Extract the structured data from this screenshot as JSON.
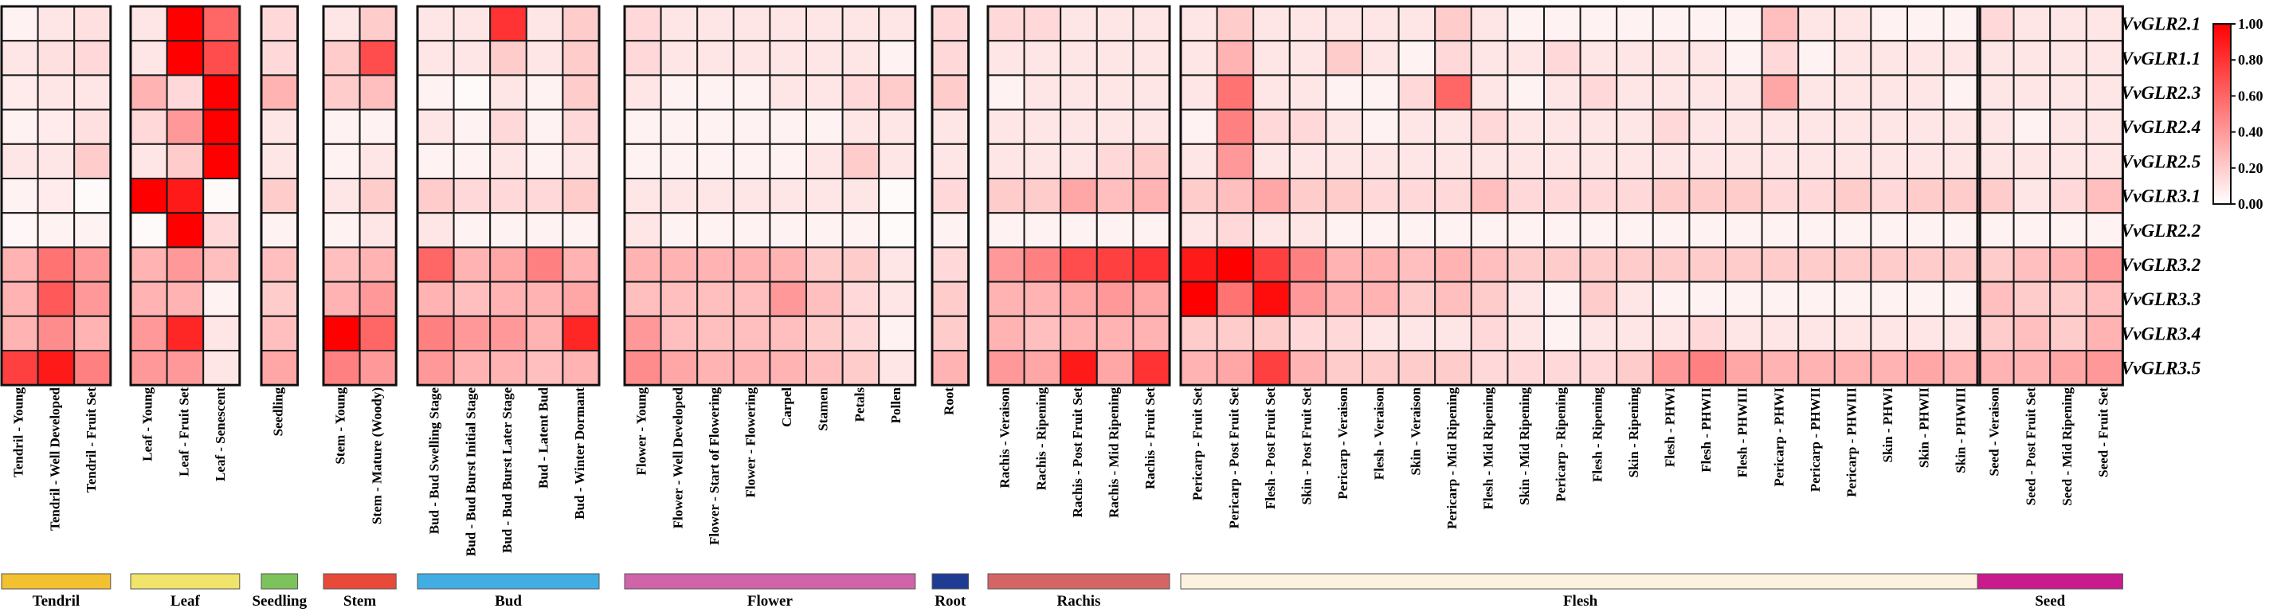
{
  "chart_data": {
    "type": "heatmap",
    "title": "",
    "xlabel": "",
    "ylabel": "",
    "colorscale": {
      "min": 0.0,
      "max": 1.0,
      "low_color": "#ffffff",
      "high_color": "#ff0000"
    },
    "legend": {
      "ticks": [
        "1.00",
        "0.80",
        "0.60",
        "0.40",
        "0.20",
        "0.00"
      ],
      "position": "right"
    },
    "rows": [
      "VvGLR2.1",
      "VvGLR1.1",
      "VvGLR2.3",
      "VvGLR2.4",
      "VvGLR2.5",
      "VvGLR3.1",
      "VvGLR2.2",
      "VvGLR3.2",
      "VvGLR3.3",
      "VvGLR3.4",
      "VvGLR3.5"
    ],
    "groups": [
      {
        "name": "Tendril",
        "color": "#f3c02f",
        "columns": [
          "Tendril - Young",
          "Tendril - Well Developed",
          "Tendril - Fruit Set"
        ],
        "values": [
          [
            0.05,
            0.1,
            0.12
          ],
          [
            0.1,
            0.12,
            0.15
          ],
          [
            0.08,
            0.1,
            0.1
          ],
          [
            0.05,
            0.08,
            0.12
          ],
          [
            0.1,
            0.1,
            0.2
          ],
          [
            0.05,
            0.08,
            0.02
          ],
          [
            0.03,
            0.05,
            0.05
          ],
          [
            0.3,
            0.55,
            0.4
          ],
          [
            0.3,
            0.65,
            0.4
          ],
          [
            0.3,
            0.45,
            0.3
          ],
          [
            0.75,
            0.9,
            0.5
          ]
        ]
      },
      {
        "name": "Leaf",
        "color": "#f0e46a",
        "columns": [
          "Leaf - Young",
          "Leaf - Fruit Set",
          "Leaf - Senescent"
        ],
        "values": [
          [
            0.1,
            1.0,
            0.6
          ],
          [
            0.1,
            1.0,
            0.7
          ],
          [
            0.3,
            0.15,
            1.0
          ],
          [
            0.15,
            0.4,
            1.0
          ],
          [
            0.1,
            0.2,
            1.0
          ],
          [
            1.0,
            0.9,
            0.02
          ],
          [
            0.02,
            1.0,
            0.15
          ],
          [
            0.3,
            0.4,
            0.25
          ],
          [
            0.3,
            0.3,
            0.05
          ],
          [
            0.4,
            0.85,
            0.1
          ],
          [
            0.4,
            0.4,
            0.1
          ]
        ]
      },
      {
        "name": "Seedling",
        "color": "#7dc35b",
        "columns": [
          "Seedling"
        ],
        "values": [
          [
            0.15
          ],
          [
            0.15
          ],
          [
            0.3
          ],
          [
            0.1
          ],
          [
            0.1
          ],
          [
            0.2
          ],
          [
            0.05
          ],
          [
            0.25
          ],
          [
            0.2
          ],
          [
            0.25
          ],
          [
            0.35
          ]
        ]
      },
      {
        "name": "Stem",
        "color": "#e84a3a",
        "columns": [
          "Stem - Young",
          "Stem - Mature (Woody)"
        ],
        "values": [
          [
            0.1,
            0.2
          ],
          [
            0.2,
            0.7
          ],
          [
            0.2,
            0.25
          ],
          [
            0.05,
            0.05
          ],
          [
            0.05,
            0.1
          ],
          [
            0.1,
            0.2
          ],
          [
            0.05,
            0.1
          ],
          [
            0.25,
            0.3
          ],
          [
            0.3,
            0.4
          ],
          [
            1.0,
            0.6
          ],
          [
            0.5,
            0.4
          ]
        ]
      },
      {
        "name": "Bud",
        "color": "#42ade2",
        "columns": [
          "Bud - Bud Swelling Stage",
          "Bud - Bud Burst Initial Stage",
          "Bud - Bud Burst Later Stage",
          "Bud - Latent Bud",
          "Bud - Winter Dormant"
        ],
        "values": [
          [
            0.1,
            0.1,
            0.8,
            0.1,
            0.2
          ],
          [
            0.1,
            0.1,
            0.2,
            0.1,
            0.2
          ],
          [
            0.05,
            0.02,
            0.1,
            0.05,
            0.2
          ],
          [
            0.1,
            0.05,
            0.15,
            0.05,
            0.15
          ],
          [
            0.05,
            0.05,
            0.1,
            0.05,
            0.1
          ],
          [
            0.2,
            0.15,
            0.15,
            0.15,
            0.2
          ],
          [
            0.1,
            0.05,
            0.05,
            0.05,
            0.05
          ],
          [
            0.6,
            0.3,
            0.35,
            0.5,
            0.3
          ],
          [
            0.3,
            0.25,
            0.3,
            0.3,
            0.35
          ],
          [
            0.5,
            0.4,
            0.4,
            0.3,
            0.85
          ],
          [
            0.4,
            0.3,
            0.3,
            0.25,
            0.3
          ]
        ]
      },
      {
        "name": "Flower",
        "color": "#cf65a8",
        "columns": [
          "Flower - Young",
          "Flower - Well Developed",
          "Flower - Start of Flowering",
          "Flower - Flowering",
          "Carpel",
          "Stamen",
          "Petals",
          "Pollen"
        ],
        "values": [
          [
            0.15,
            0.1,
            0.1,
            0.1,
            0.1,
            0.1,
            0.1,
            0.1
          ],
          [
            0.15,
            0.1,
            0.1,
            0.1,
            0.1,
            0.1,
            0.1,
            0.05
          ],
          [
            0.1,
            0.05,
            0.05,
            0.05,
            0.1,
            0.1,
            0.15,
            0.2
          ],
          [
            0.05,
            0.05,
            0.05,
            0.05,
            0.05,
            0.05,
            0.1,
            0.1
          ],
          [
            0.05,
            0.05,
            0.05,
            0.05,
            0.05,
            0.1,
            0.2,
            0.1
          ],
          [
            0.1,
            0.1,
            0.1,
            0.1,
            0.1,
            0.1,
            0.1,
            0.02
          ],
          [
            0.1,
            0.05,
            0.05,
            0.05,
            0.05,
            0.05,
            0.05,
            0.02
          ],
          [
            0.3,
            0.3,
            0.3,
            0.3,
            0.3,
            0.2,
            0.2,
            0.1
          ],
          [
            0.25,
            0.25,
            0.25,
            0.25,
            0.4,
            0.25,
            0.15,
            0.1
          ],
          [
            0.4,
            0.25,
            0.25,
            0.25,
            0.25,
            0.2,
            0.15,
            0.05
          ],
          [
            0.45,
            0.35,
            0.3,
            0.3,
            0.3,
            0.25,
            0.2,
            0.1
          ]
        ]
      },
      {
        "name": "Root",
        "color": "#1f3c93",
        "columns": [
          "Root"
        ],
        "values": [
          [
            0.15
          ],
          [
            0.15
          ],
          [
            0.2
          ],
          [
            0.1
          ],
          [
            0.1
          ],
          [
            0.15
          ],
          [
            0.05
          ],
          [
            0.15
          ],
          [
            0.2
          ],
          [
            0.2
          ],
          [
            0.3
          ]
        ]
      },
      {
        "name": "Rachis",
        "color": "#d36665",
        "columns": [
          "Rachis - Veraison",
          "Rachis - Ripening",
          "Rachis - Post Fruit Set",
          "Rachis - Mid Ripening",
          "Rachis - Fruit Set"
        ],
        "values": [
          [
            0.15,
            0.15,
            0.1,
            0.1,
            0.1
          ],
          [
            0.1,
            0.1,
            0.1,
            0.1,
            0.1
          ],
          [
            0.05,
            0.1,
            0.1,
            0.1,
            0.1
          ],
          [
            0.1,
            0.1,
            0.1,
            0.1,
            0.1
          ],
          [
            0.1,
            0.1,
            0.1,
            0.15,
            0.2
          ],
          [
            0.2,
            0.2,
            0.35,
            0.25,
            0.3
          ],
          [
            0.05,
            0.05,
            0.05,
            0.05,
            0.05
          ],
          [
            0.4,
            0.5,
            0.7,
            0.75,
            0.8
          ],
          [
            0.3,
            0.3,
            0.35,
            0.4,
            0.35
          ],
          [
            0.3,
            0.25,
            0.3,
            0.3,
            0.3
          ],
          [
            0.4,
            0.35,
            0.9,
            0.35,
            0.8
          ]
        ]
      },
      {
        "name": "Flesh",
        "color": "#fcf2dd",
        "columns": [
          "Pericarp - Fruit Set",
          "Pericarp - Post Fruit Set",
          "Flesh - Post Fruit Set",
          "Skin - Post Fruit Set",
          "Pericarp - Veraison",
          "Flesh - Veraison",
          "Skin - Veraison",
          "Pericarp - Mid Ripening",
          "Flesh - Mid Ripening",
          "Skin - Mid Ripening",
          "Pericarp - Ripening",
          "Flesh - Ripening",
          "Skin - Ripening",
          "Flesh - PHWI",
          "Flesh - PHWII",
          "Flesh - PHWIII",
          "Pericarp - PHWI",
          "Pericarp - PHWII",
          "Pericarp - PHWIII",
          "Skin - PHWI",
          "Skin - PHWII",
          "Skin - PHWIII"
        ],
        "values": [
          [
            0.1,
            0.2,
            0.1,
            0.1,
            0.1,
            0.1,
            0.1,
            0.2,
            0.1,
            0.05,
            0.05,
            0.05,
            0.05,
            0.05,
            0.05,
            0.05,
            0.25,
            0.1,
            0.1,
            0.05,
            0.05,
            0.05
          ],
          [
            0.1,
            0.3,
            0.1,
            0.1,
            0.2,
            0.1,
            0.05,
            0.15,
            0.1,
            0.1,
            0.15,
            0.1,
            0.1,
            0.1,
            0.1,
            0.05,
            0.15,
            0.05,
            0.1,
            0.1,
            0.1,
            0.1
          ],
          [
            0.1,
            0.55,
            0.1,
            0.1,
            0.05,
            0.05,
            0.15,
            0.6,
            0.1,
            0.05,
            0.1,
            0.15,
            0.1,
            0.1,
            0.1,
            0.1,
            0.35,
            0.1,
            0.1,
            0.1,
            0.1,
            0.05
          ],
          [
            0.05,
            0.5,
            0.15,
            0.15,
            0.1,
            0.05,
            0.1,
            0.1,
            0.15,
            0.1,
            0.1,
            0.1,
            0.1,
            0.15,
            0.1,
            0.1,
            0.1,
            0.1,
            0.1,
            0.1,
            0.1,
            0.1
          ],
          [
            0.1,
            0.4,
            0.1,
            0.1,
            0.1,
            0.1,
            0.1,
            0.1,
            0.1,
            0.1,
            0.1,
            0.1,
            0.1,
            0.1,
            0.1,
            0.1,
            0.1,
            0.1,
            0.1,
            0.1,
            0.1,
            0.1
          ],
          [
            0.2,
            0.25,
            0.35,
            0.2,
            0.2,
            0.15,
            0.15,
            0.15,
            0.25,
            0.15,
            0.15,
            0.15,
            0.15,
            0.2,
            0.2,
            0.2,
            0.15,
            0.15,
            0.2,
            0.15,
            0.2,
            0.2
          ],
          [
            0.1,
            0.15,
            0.1,
            0.1,
            0.05,
            0.05,
            0.05,
            0.05,
            0.05,
            0.05,
            0.05,
            0.05,
            0.05,
            0.05,
            0.05,
            0.05,
            0.05,
            0.05,
            0.05,
            0.05,
            0.05,
            0.05
          ],
          [
            0.9,
            1.0,
            0.75,
            0.5,
            0.3,
            0.3,
            0.25,
            0.3,
            0.25,
            0.2,
            0.2,
            0.2,
            0.2,
            0.2,
            0.2,
            0.2,
            0.2,
            0.2,
            0.2,
            0.2,
            0.2,
            0.2
          ],
          [
            1.0,
            0.55,
            0.95,
            0.4,
            0.3,
            0.3,
            0.2,
            0.25,
            0.2,
            0.1,
            0.05,
            0.2,
            0.1,
            0.05,
            0.05,
            0.05,
            0.05,
            0.05,
            0.05,
            0.05,
            0.05,
            0.05
          ],
          [
            0.2,
            0.2,
            0.2,
            0.15,
            0.15,
            0.1,
            0.1,
            0.1,
            0.15,
            0.1,
            0.05,
            0.1,
            0.1,
            0.1,
            0.15,
            0.1,
            0.1,
            0.1,
            0.1,
            0.1,
            0.1,
            0.1
          ],
          [
            0.3,
            0.35,
            0.75,
            0.3,
            0.2,
            0.2,
            0.2,
            0.2,
            0.15,
            0.15,
            0.15,
            0.15,
            0.2,
            0.4,
            0.5,
            0.35,
            0.3,
            0.3,
            0.3,
            0.3,
            0.35,
            0.3
          ]
        ]
      },
      {
        "name": "Seed",
        "color": "#c91a8e",
        "columns": [
          "Seed - Veraison",
          "Seed - Post Fruit Set",
          "Seed - Mid Ripening",
          "Seed - Fruit Set"
        ],
        "values": [
          [
            0.15,
            0.1,
            0.1,
            0.1
          ],
          [
            0.1,
            0.1,
            0.1,
            0.1
          ],
          [
            0.1,
            0.1,
            0.1,
            0.1
          ],
          [
            0.1,
            0.05,
            0.1,
            0.1
          ],
          [
            0.1,
            0.1,
            0.1,
            0.1
          ],
          [
            0.2,
            0.1,
            0.15,
            0.25
          ],
          [
            0.05,
            0.05,
            0.05,
            0.05
          ],
          [
            0.2,
            0.25,
            0.3,
            0.4
          ],
          [
            0.25,
            0.2,
            0.2,
            0.25
          ],
          [
            0.2,
            0.25,
            0.2,
            0.3
          ],
          [
            0.3,
            0.3,
            0.35,
            0.4
          ]
        ]
      }
    ]
  }
}
